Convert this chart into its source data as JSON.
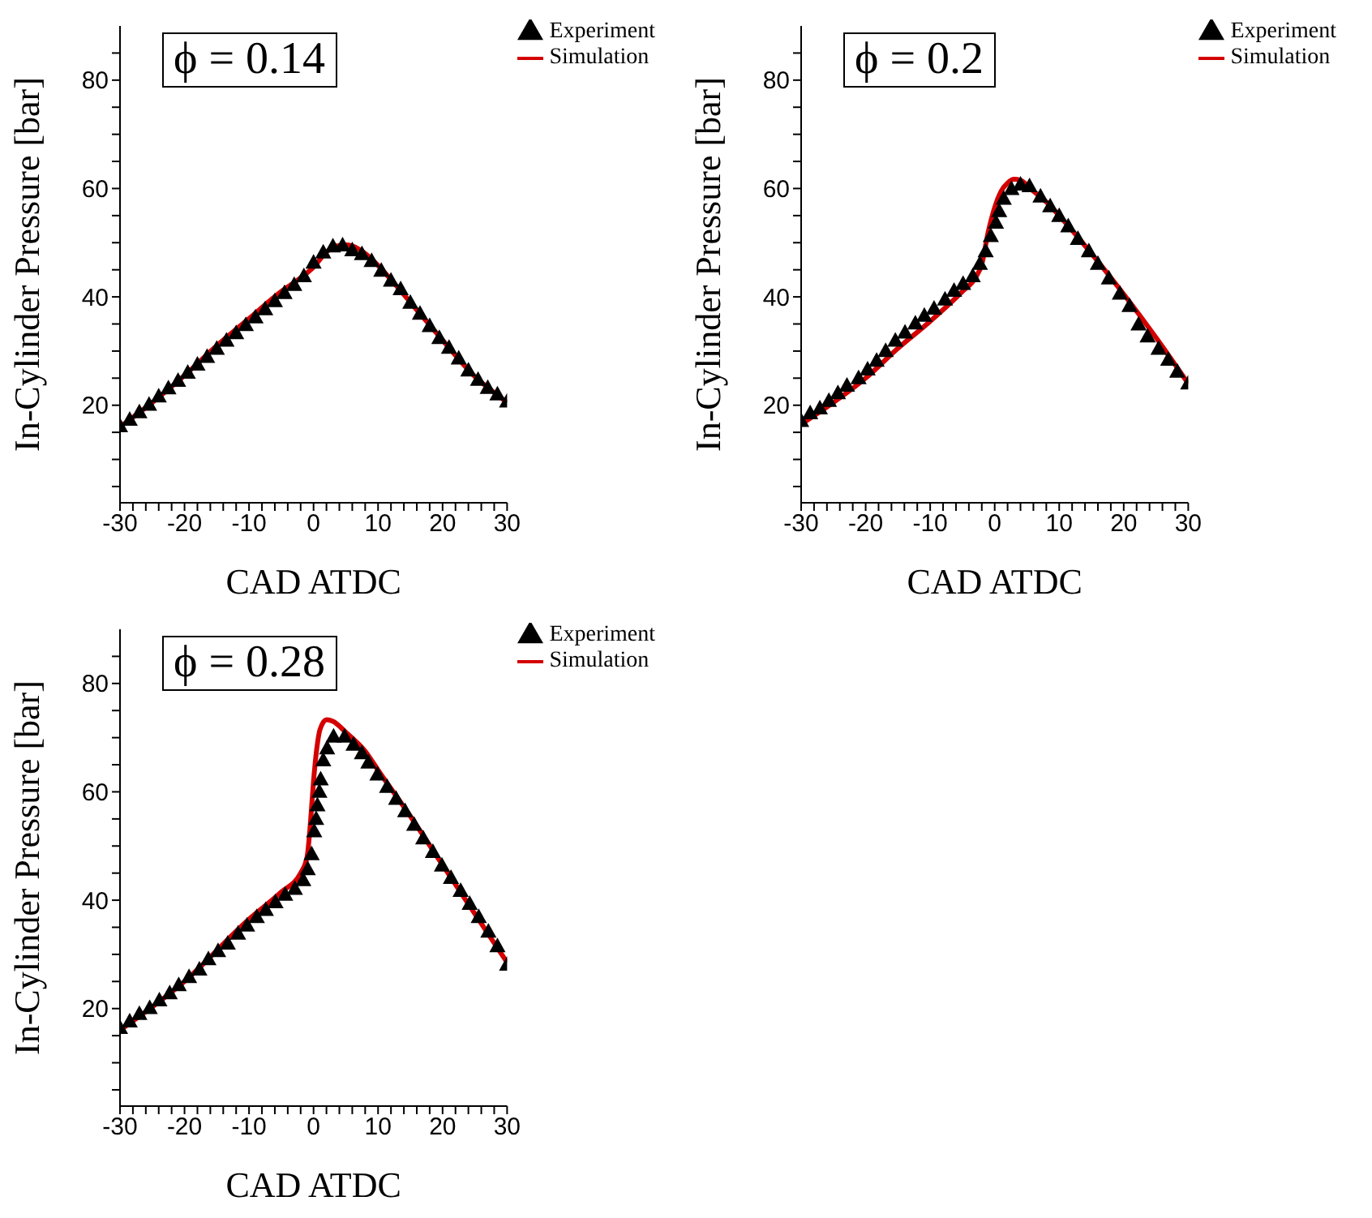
{
  "chart_data": [
    {
      "type": "line",
      "xlabel": "CAD ATDC",
      "ylabel": "In-Cylinder Pressure [bar]",
      "annotations": [
        "ϕ = 0.14"
      ],
      "legend": "top right",
      "xlim": [
        -30,
        30
      ],
      "xticks": [
        -30,
        {
          "value": -28,
          "label": null
        },
        {
          "value": -26,
          "label": null
        },
        {
          "value": -24,
          "label": null
        },
        {
          "value": -22,
          "label": null
        },
        -20,
        {
          "value": -18,
          "label": null
        },
        {
          "value": -16,
          "label": null
        },
        {
          "value": -14,
          "label": null
        },
        {
          "value": -12,
          "label": null
        },
        -10,
        {
          "value": -8,
          "label": null
        },
        {
          "value": -6,
          "label": null
        },
        {
          "value": -4,
          "label": null
        },
        {
          "value": -2,
          "label": null
        },
        0,
        {
          "value": 2,
          "label": null
        },
        {
          "value": 4,
          "label": null
        },
        {
          "value": 6,
          "label": null
        },
        {
          "value": 8,
          "label": null
        },
        10,
        {
          "value": 12,
          "label": null
        },
        {
          "value": 14,
          "label": null
        },
        {
          "value": 16,
          "label": null
        },
        {
          "value": 18,
          "label": null
        },
        20,
        {
          "value": 22,
          "label": null
        },
        {
          "value": 24,
          "label": null
        },
        {
          "value": 26,
          "label": null
        },
        {
          "value": 28,
          "label": null
        },
        30
      ],
      "ylim": [
        2,
        90
      ],
      "yticks": [
        {
          "value": 5,
          "label": null
        },
        {
          "value": 10,
          "label": null
        },
        {
          "value": 15,
          "label": null
        },
        20,
        {
          "value": 25,
          "label": null
        },
        {
          "value": 30,
          "label": null
        },
        {
          "value": 35,
          "label": null
        },
        40,
        {
          "value": 45,
          "label": null
        },
        {
          "value": 50,
          "label": null
        },
        {
          "value": 55,
          "label": null
        },
        60,
        {
          "value": 65,
          "label": null
        },
        {
          "value": 70,
          "label": null
        },
        {
          "value": 75,
          "label": null
        },
        80,
        {
          "value": 85,
          "label": null
        }
      ],
      "series": [
        {
          "name": "Experiment",
          "type": "scatter",
          "marker": "triangle",
          "color": "#000000",
          "x": [
            -30,
            -28.5,
            -27,
            -25.5,
            -24,
            -22.5,
            -21,
            -19.5,
            -18,
            -16.5,
            -15,
            -13.5,
            -12,
            -10.5,
            -9,
            -7.5,
            -6,
            -4.5,
            -3,
            -1.5,
            0,
            1.5,
            3,
            4.5,
            6,
            7.5,
            9,
            10.5,
            12,
            13.5,
            15,
            16.5,
            18,
            19.5,
            21,
            22.5,
            24,
            25.5,
            27,
            28.5,
            30
          ],
          "values": [
            16.2,
            17.4,
            18.8,
            20.2,
            21.7,
            23.2,
            24.6,
            26.1,
            27.6,
            29.0,
            30.5,
            32.0,
            33.4,
            34.9,
            36.3,
            37.8,
            39.3,
            40.8,
            42.3,
            43.9,
            46.4,
            48.3,
            49.4,
            49.6,
            48.7,
            48.0,
            46.7,
            44.9,
            43.1,
            41.5,
            39.0,
            37.0,
            34.7,
            32.5,
            30.7,
            28.7,
            26.5,
            24.8,
            23.3,
            22.1,
            20.8
          ]
        },
        {
          "name": "Simulation",
          "color": "#d40000",
          "x": [
            -30,
            -25,
            -20,
            -15,
            -10,
            -5,
            -2,
            0,
            2,
            4,
            5,
            6,
            8,
            10,
            12.5,
            15,
            17.5,
            20,
            22.5,
            25,
            27.5,
            30
          ],
          "values": [
            16,
            20.5,
            25.5,
            31,
            36,
            41,
            43.5,
            45.5,
            48.3,
            49.5,
            49.6,
            49.4,
            48,
            45.8,
            42.5,
            39,
            35.5,
            32,
            28.5,
            25.3,
            22.8,
            20.5
          ]
        }
      ]
    },
    {
      "type": "line",
      "xlabel": "CAD ATDC",
      "ylabel": "In-Cylinder Pressure [bar]",
      "annotations": [
        "ϕ = 0.2"
      ],
      "legend": "top right",
      "xlim": [
        -30,
        30
      ],
      "xticks": [
        -30,
        {
          "value": -28,
          "label": null
        },
        {
          "value": -26,
          "label": null
        },
        {
          "value": -24,
          "label": null
        },
        {
          "value": -22,
          "label": null
        },
        -20,
        {
          "value": -18,
          "label": null
        },
        {
          "value": -16,
          "label": null
        },
        {
          "value": -14,
          "label": null
        },
        {
          "value": -12,
          "label": null
        },
        -10,
        {
          "value": -8,
          "label": null
        },
        {
          "value": -6,
          "label": null
        },
        {
          "value": -4,
          "label": null
        },
        {
          "value": -2,
          "label": null
        },
        0,
        {
          "value": 2,
          "label": null
        },
        {
          "value": 4,
          "label": null
        },
        {
          "value": 6,
          "label": null
        },
        {
          "value": 8,
          "label": null
        },
        10,
        {
          "value": 12,
          "label": null
        },
        {
          "value": 14,
          "label": null
        },
        {
          "value": 16,
          "label": null
        },
        {
          "value": 18,
          "label": null
        },
        20,
        {
          "value": 22,
          "label": null
        },
        {
          "value": 24,
          "label": null
        },
        {
          "value": 26,
          "label": null
        },
        {
          "value": 28,
          "label": null
        },
        30
      ],
      "ylim": [
        2,
        90
      ],
      "yticks": [
        {
          "value": 5,
          "label": null
        },
        {
          "value": 10,
          "label": null
        },
        {
          "value": 15,
          "label": null
        },
        20,
        {
          "value": 25,
          "label": null
        },
        {
          "value": 30,
          "label": null
        },
        {
          "value": 35,
          "label": null
        },
        40,
        {
          "value": 45,
          "label": null
        },
        {
          "value": 50,
          "label": null
        },
        {
          "value": 55,
          "label": null
        },
        60,
        {
          "value": 65,
          "label": null
        },
        {
          "value": 70,
          "label": null
        },
        {
          "value": 75,
          "label": null
        },
        80,
        {
          "value": 85,
          "label": null
        }
      ],
      "series": [
        {
          "name": "Experiment",
          "type": "scatter",
          "marker": "triangle",
          "color": "#000000",
          "x": [
            -30,
            -28.6,
            -27.1,
            -25.7,
            -24.3,
            -22.9,
            -21.1,
            -19.7,
            -18.3,
            -16.9,
            -15.4,
            -13.9,
            -12.3,
            -10.9,
            -9.4,
            -7.7,
            -6.3,
            -4.9,
            -3.4,
            -2.3,
            -1.4,
            -0.6,
            0.2,
            0.7,
            1.4,
            2.6,
            4,
            5.4,
            7.1,
            8.6,
            10,
            11.4,
            12.9,
            14.6,
            16,
            17.7,
            19.4,
            20.9,
            22.3,
            23.7,
            25.4,
            26.9,
            28.3,
            30
          ],
          "values": [
            17.2,
            18.6,
            19.5,
            20.9,
            22.3,
            23.7,
            25.1,
            26.7,
            28.3,
            30.1,
            32.0,
            33.5,
            35.2,
            36.6,
            37.9,
            39.6,
            41.2,
            42.5,
            43.9,
            46.2,
            48.5,
            51.3,
            53.8,
            55.9,
            58.2,
            60.0,
            60.8,
            60.5,
            58.6,
            56.8,
            55.0,
            53.1,
            50.8,
            48.5,
            46.2,
            43.5,
            40.7,
            38.4,
            35.0,
            32.8,
            30.5,
            28.5,
            26.3,
            24.1
          ]
        },
        {
          "name": "Simulation",
          "color": "#d40000",
          "x": [
            -30,
            -25,
            -20,
            -15,
            -10,
            -5,
            -3,
            -2,
            -1,
            0,
            1,
            2,
            3,
            4,
            6,
            8,
            10,
            15,
            20,
            25,
            30
          ],
          "values": [
            16.5,
            20.5,
            25,
            30.5,
            35.5,
            41,
            43.5,
            46,
            52,
            56.5,
            59.5,
            61,
            61.7,
            61.5,
            59.5,
            57.5,
            55,
            48,
            40.5,
            32.5,
            24
          ]
        }
      ]
    },
    {
      "type": "line",
      "xlabel": "CAD ATDC",
      "ylabel": "In-Cylinder Pressure [bar]",
      "annotations": [
        "ϕ = 0.28"
      ],
      "legend": "top right",
      "xlim": [
        -30,
        30
      ],
      "xticks": [
        -30,
        {
          "value": -28,
          "label": null
        },
        {
          "value": -26,
          "label": null
        },
        {
          "value": -24,
          "label": null
        },
        {
          "value": -22,
          "label": null
        },
        -20,
        {
          "value": -18,
          "label": null
        },
        {
          "value": -16,
          "label": null
        },
        {
          "value": -14,
          "label": null
        },
        {
          "value": -12,
          "label": null
        },
        -10,
        {
          "value": -8,
          "label": null
        },
        {
          "value": -6,
          "label": null
        },
        {
          "value": -4,
          "label": null
        },
        {
          "value": -2,
          "label": null
        },
        0,
        {
          "value": 2,
          "label": null
        },
        {
          "value": 4,
          "label": null
        },
        {
          "value": 6,
          "label": null
        },
        {
          "value": 8,
          "label": null
        },
        10,
        {
          "value": 12,
          "label": null
        },
        {
          "value": 14,
          "label": null
        },
        {
          "value": 16,
          "label": null
        },
        {
          "value": 18,
          "label": null
        },
        20,
        {
          "value": 22,
          "label": null
        },
        {
          "value": 24,
          "label": null
        },
        {
          "value": 26,
          "label": null
        },
        {
          "value": 28,
          "label": null
        },
        30
      ],
      "ylim": [
        2,
        90
      ],
      "yticks": [
        {
          "value": 5,
          "label": null
        },
        {
          "value": 10,
          "label": null
        },
        {
          "value": 15,
          "label": null
        },
        20,
        {
          "value": 25,
          "label": null
        },
        {
          "value": 30,
          "label": null
        },
        {
          "value": 35,
          "label": null
        },
        40,
        {
          "value": 45,
          "label": null
        },
        {
          "value": 50,
          "label": null
        },
        {
          "value": 55,
          "label": null
        },
        60,
        {
          "value": 65,
          "label": null
        },
        {
          "value": 70,
          "label": null
        },
        {
          "value": 75,
          "label": null
        },
        80,
        {
          "value": 85,
          "label": null
        }
      ],
      "series": [
        {
          "name": "Experiment",
          "type": "scatter",
          "marker": "triangle",
          "color": "#000000",
          "x": [
            -30,
            -28.5,
            -27,
            -25.4,
            -23.9,
            -22.3,
            -20.9,
            -19.3,
            -17.7,
            -16.3,
            -14.8,
            -13.3,
            -11.7,
            -10.3,
            -8.8,
            -7.4,
            -5.9,
            -4.4,
            -2.9,
            -1.6,
            -0.9,
            -0.3,
            0.1,
            0.4,
            0.6,
            0.9,
            1.1,
            1.5,
            2.1,
            3.1,
            4.8,
            6.2,
            7.5,
            8.5,
            9.9,
            11.4,
            12.8,
            14.2,
            15.6,
            17,
            18.5,
            19.9,
            21.3,
            22.8,
            24.2,
            25.6,
            27.1,
            28.5,
            30
          ],
          "values": [
            16.5,
            17.7,
            19.1,
            20.2,
            21.6,
            22.9,
            24.4,
            25.9,
            27.3,
            29.2,
            30.7,
            32.1,
            33.9,
            35.4,
            37.0,
            38.3,
            39.7,
            41.1,
            42.2,
            43.8,
            45.8,
            48.6,
            52.8,
            55.1,
            57.6,
            60.1,
            62.4,
            65.9,
            68.1,
            70.3,
            70.3,
            68.8,
            67.2,
            65.5,
            63.3,
            61.0,
            58.8,
            56.5,
            54.0,
            51.5,
            49.0,
            46.5,
            44.2,
            41.8,
            39.4,
            37.0,
            34.3,
            31.6,
            28.2
          ]
        },
        {
          "name": "Simulation",
          "color": "#d40000",
          "x": [
            -30,
            -20,
            -10,
            -5,
            -2,
            -1,
            -0.5,
            0,
            0.5,
            1,
            2,
            3,
            5,
            8,
            10,
            15,
            20,
            25,
            30
          ],
          "values": [
            16,
            25,
            36.5,
            41.5,
            45,
            48,
            54,
            62,
            68,
            71.5,
            73.3,
            73,
            71,
            67.5,
            64,
            55.5,
            46.5,
            37.5,
            28.5
          ]
        }
      ]
    }
  ]
}
